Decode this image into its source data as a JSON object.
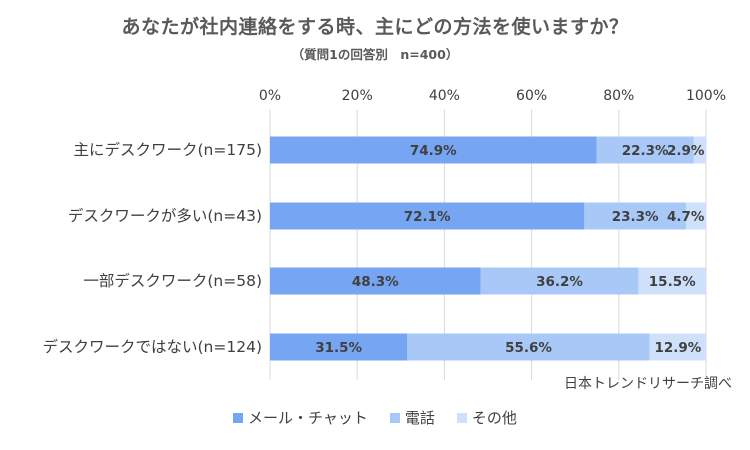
{
  "title": "あなたが社内連絡をする時、主にどの方法を使いますか？",
  "subtitle": "（質問1の回答別　n=400）",
  "source": "日本トレンドリサーチ調べ",
  "colors": {
    "mail_chat": "#76a5f2",
    "phone": "#a8c8f7",
    "other": "#cfe0fb",
    "grid": "#d9d9d9",
    "label": "#404040"
  },
  "chart_data": {
    "type": "bar",
    "orientation": "horizontal",
    "stacked": true,
    "categories": [
      "主にデスクワーク(n=175)",
      "デスクワークが多い(n=43)",
      "一部デスクワーク(n=58)",
      "デスクワークではない(n=124)"
    ],
    "series": [
      {
        "name": "メール・チャット",
        "values": [
          74.9,
          72.1,
          48.3,
          31.5
        ],
        "labels": [
          "74.9%",
          "72.1%",
          "48.3%",
          "31.5%"
        ],
        "color": "#76a5f2"
      },
      {
        "name": "電話",
        "values": [
          22.3,
          23.3,
          36.2,
          55.6
        ],
        "labels": [
          "22.3%",
          "23.3%",
          "36.2%",
          "55.6%"
        ],
        "color": "#a8c8f7"
      },
      {
        "name": "その他",
        "values": [
          2.9,
          4.7,
          15.5,
          12.9
        ],
        "labels": [
          "2.9%",
          "4.7%",
          "15.5%",
          "12.9%"
        ],
        "color": "#cfe0fb"
      }
    ],
    "xlim": [
      0,
      100
    ],
    "xticks": [
      "0%",
      "20%",
      "40%",
      "60%",
      "80%",
      "100%"
    ],
    "grid": true,
    "legend_position": "bottom"
  }
}
